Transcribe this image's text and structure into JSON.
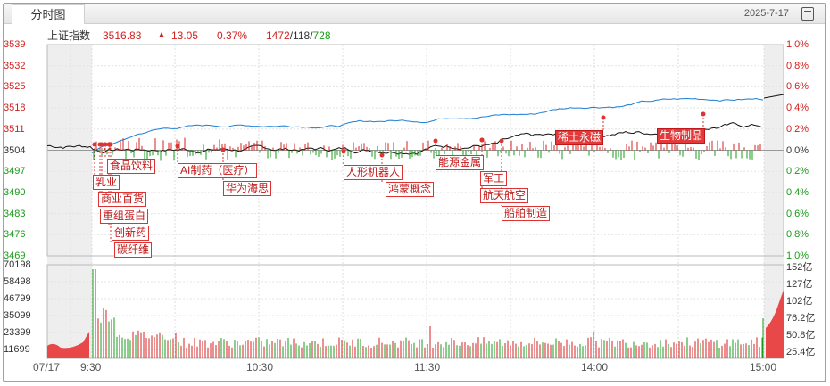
{
  "title_tab": "分时图",
  "top_date": "2025-7-17",
  "info": {
    "index_name": "上证指数",
    "price": "3516.83",
    "change_arrow": "▲",
    "change": "13.05",
    "change_pct": "0.37%",
    "breadth_up": "1472",
    "breadth_flat": "118",
    "breadth_down": "728"
  },
  "price_axis": [
    "3539",
    "3532",
    "3525",
    "3518",
    "3511",
    "3504",
    "3497",
    "3490",
    "3483",
    "3476",
    "3469"
  ],
  "pct_axis": [
    "1.0%",
    "0.8%",
    "0.6%",
    "0.4%",
    "0.2%",
    "0.0%",
    "0.2%",
    "0.4%",
    "0.6%",
    "0.8%",
    "1.0%"
  ],
  "volume_axis": [
    "70198",
    "58498",
    "46799",
    "35099",
    "23399",
    "11699"
  ],
  "amount_axis": [
    "152亿",
    "127亿",
    "102亿",
    "76.2亿",
    "50.8亿",
    "25.4亿"
  ],
  "time_axis": [
    "07/17",
    "9:30",
    "10:30",
    "11:30",
    "14:00",
    "15:00"
  ],
  "tags": [
    {
      "label": "食品饮料",
      "style": "outline"
    },
    {
      "label": "乳业",
      "style": "outline"
    },
    {
      "label": "商业百货",
      "style": "outline"
    },
    {
      "label": "重组蛋白",
      "style": "outline"
    },
    {
      "label": "创新药",
      "style": "outline"
    },
    {
      "label": "碳纤维",
      "style": "outline"
    },
    {
      "label": "AI制药（医疗）",
      "style": "outline"
    },
    {
      "label": "华为海思",
      "style": "outline"
    },
    {
      "label": "人形机器人",
      "style": "outline"
    },
    {
      "label": "鸿蒙概念",
      "style": "outline"
    },
    {
      "label": "能源金属",
      "style": "outline"
    },
    {
      "label": "军工",
      "style": "outline"
    },
    {
      "label": "航天航空",
      "style": "outline"
    },
    {
      "label": "船舶制造",
      "style": "outline"
    },
    {
      "label": "稀土永磁",
      "style": "solid"
    },
    {
      "label": "生物制品",
      "style": "solid"
    }
  ],
  "colors": {
    "up": "#d42020",
    "down": "#1a9a1a",
    "price_line": "#111111",
    "avg_line": "#1e7fd4",
    "frame": "#5fb3f5"
  },
  "icons": [
    "close-icon",
    "expand-horizontal-icon",
    "calendar-icon"
  ]
}
